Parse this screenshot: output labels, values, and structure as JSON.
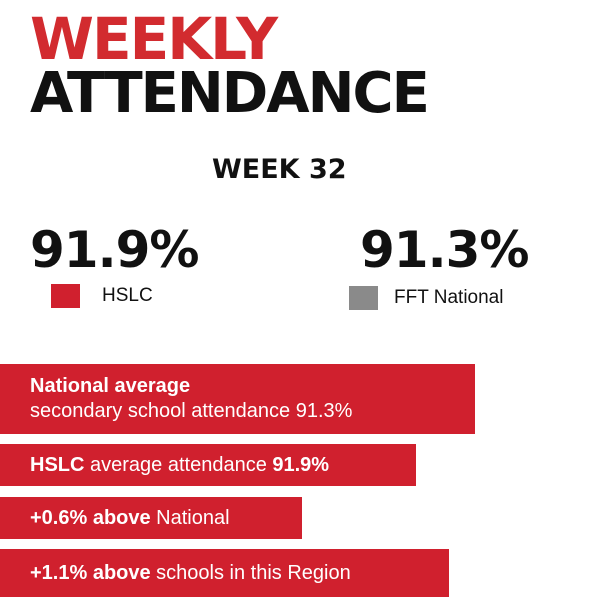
{
  "title": {
    "line1": "WEEKLY",
    "line2": "ATTENDANCE"
  },
  "week": "WEEK 32",
  "stats": {
    "hslc": {
      "value": "91.9%",
      "label": "HSLC",
      "color": "#d0202e"
    },
    "fft": {
      "value": "91.3%",
      "label": "FFT National",
      "color": "#8a8a8a"
    }
  },
  "bars": {
    "national": {
      "bold": "National average",
      "text": "secondary school attendance 91.3%"
    },
    "hslc": {
      "bold_1": "HSLC",
      "text": " average attendance ",
      "bold_2": "91.9%"
    },
    "above_national": {
      "bold": "+0.6% above",
      "text": " National"
    },
    "above_region": {
      "bold": "+1.1% above",
      "text": " schools in this Region"
    }
  },
  "colors": {
    "accent_red": "#d0202e",
    "title_red": "#d22b2f",
    "text_dark": "#111111"
  }
}
